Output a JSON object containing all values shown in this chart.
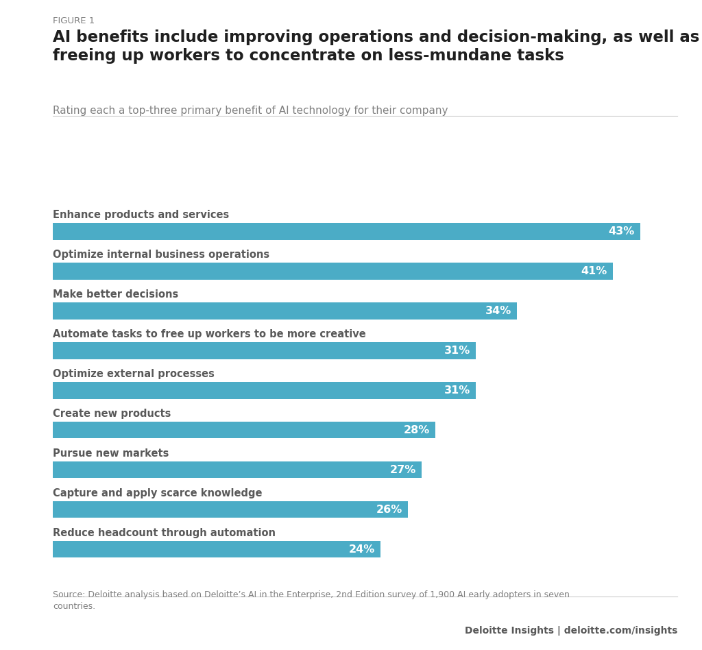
{
  "figure_label": "FIGURE 1",
  "title": "AI benefits include improving operations and decision-making, as well as\nfreeing up workers to concentrate on less-mundane tasks",
  "subtitle": "Rating each a top-three primary benefit of AI technology for their company",
  "categories": [
    "Enhance products and services",
    "Optimize internal business operations",
    "Make better decisions",
    "Automate tasks to free up workers to be more creative",
    "Optimize external processes",
    "Create new products",
    "Pursue new markets",
    "Capture and apply scarce knowledge",
    "Reduce headcount through automation"
  ],
  "values": [
    43,
    41,
    34,
    31,
    31,
    28,
    27,
    26,
    24
  ],
  "bar_color": "#4BACC6",
  "label_color": "#FFFFFF",
  "category_color": "#595959",
  "background_color": "#FFFFFF",
  "source_text": "Source: Deloitte analysis based on Deloitte’s AI in the Enterprise, 2nd Edition survey of 1,900 AI early adopters in seven\ncountries.",
  "footer_text": "Deloitte Insights | deloitte.com/insights",
  "figure_label_color": "#808080",
  "title_color": "#1F1F1F",
  "subtitle_color": "#808080",
  "source_color": "#808080",
  "footer_color": "#595959",
  "xlim": [
    0,
    46
  ]
}
